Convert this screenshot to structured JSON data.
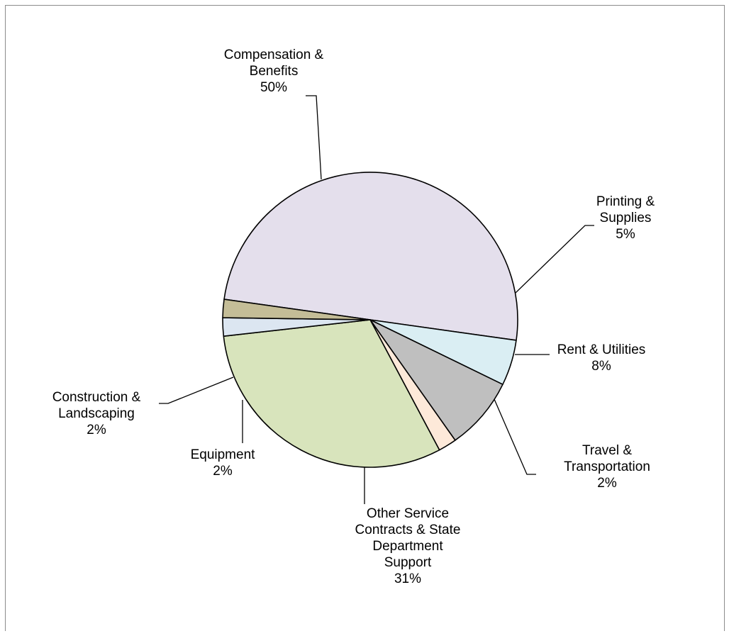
{
  "chart_data": {
    "type": "pie",
    "title": "",
    "slices": [
      {
        "label": "Compensation & Benefits",
        "value": 50,
        "display": "50%",
        "color": "#e4dfec",
        "lines": [
          "Compensation &",
          "Benefits",
          "50%"
        ]
      },
      {
        "label": "Printing & Supplies",
        "value": 5,
        "display": "5%",
        "color": "#daeef3",
        "lines": [
          "Printing &",
          "Supplies",
          "5%"
        ]
      },
      {
        "label": "Rent & Utilities",
        "value": 8,
        "display": "8%",
        "color": "#bfbfbf",
        "lines": [
          "Rent & Utilities",
          "8%"
        ]
      },
      {
        "label": "Travel & Transportation",
        "value": 2,
        "display": "2%",
        "color": "#fde9d9",
        "lines": [
          "Travel &",
          "Transportation",
          "2%"
        ]
      },
      {
        "label": "Other Service Contracts & State Department Support",
        "value": 31,
        "display": "31%",
        "color": "#d8e4bc",
        "lines": [
          "Other Service",
          "Contracts & State",
          "Department",
          "Support",
          "31%"
        ]
      },
      {
        "label": "Equipment",
        "value": 2,
        "display": "2%",
        "color": "#dce6f1",
        "lines": [
          "Equipment",
          "2%"
        ]
      },
      {
        "label": "Construction & Landscaping",
        "value": 2,
        "display": "2%",
        "color": "#c4bd97",
        "lines": [
          "Construction &",
          "Landscaping",
          "2%"
        ]
      }
    ],
    "legend": "none",
    "stroke_color": "#000000"
  }
}
